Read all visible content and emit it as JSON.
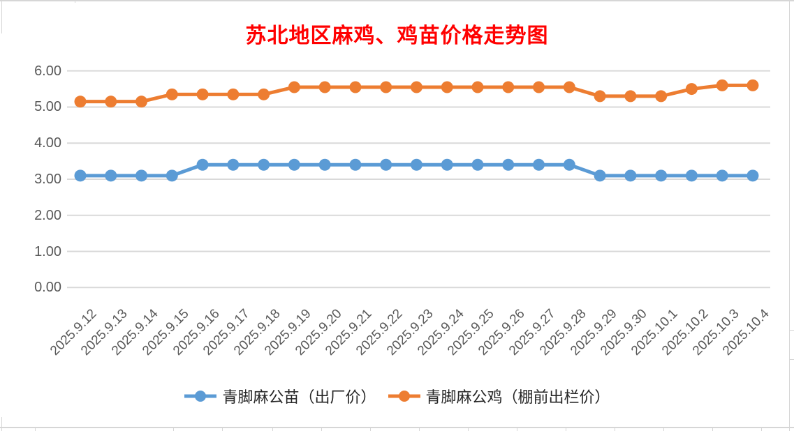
{
  "title": "苏北地区麻鸡、鸡苗价格走势图",
  "title_color": "#FF0000",
  "chart_data": {
    "type": "line",
    "categories": [
      "2025.9.12",
      "2025.9.13",
      "2025.9.14",
      "2025.9.15",
      "2025.9.16",
      "2025.9.17",
      "2025.9.18",
      "2025.9.19",
      "2025.9.20",
      "2025.9.21",
      "2025.9.22",
      "2025.9.23",
      "2025.9.24",
      "2025.9.25",
      "2025.9.26",
      "2025.9.27",
      "2025.9.28",
      "2025.9.29",
      "2025.9.30",
      "2025.10.1",
      "2025.10.2",
      "2025.10.3",
      "2025.10.4"
    ],
    "series": [
      {
        "name": "青脚麻公苗（出厂价）",
        "color": "#5B9BD5",
        "values": [
          3.1,
          3.1,
          3.1,
          3.1,
          3.4,
          3.4,
          3.4,
          3.4,
          3.4,
          3.4,
          3.4,
          3.4,
          3.4,
          3.4,
          3.4,
          3.4,
          3.4,
          3.1,
          3.1,
          3.1,
          3.1,
          3.1,
          3.1
        ]
      },
      {
        "name": "青脚麻公鸡（棚前出栏价）",
        "color": "#ED7D31",
        "values": [
          5.15,
          5.15,
          5.15,
          5.35,
          5.35,
          5.35,
          5.35,
          5.55,
          5.55,
          5.55,
          5.55,
          5.55,
          5.55,
          5.55,
          5.55,
          5.55,
          5.55,
          5.3,
          5.3,
          5.3,
          5.5,
          5.6,
          5.6
        ]
      }
    ],
    "ylim": [
      0,
      6
    ],
    "yticks": [
      "0.00",
      "1.00",
      "2.00",
      "3.00",
      "4.00",
      "5.00",
      "6.00"
    ],
    "ytick_values": [
      0,
      1,
      2,
      3,
      4,
      5,
      6
    ],
    "grid": true,
    "legend_position": "bottom",
    "axis_label_color": "#595959",
    "gridline_color": "#D9D9D9"
  }
}
